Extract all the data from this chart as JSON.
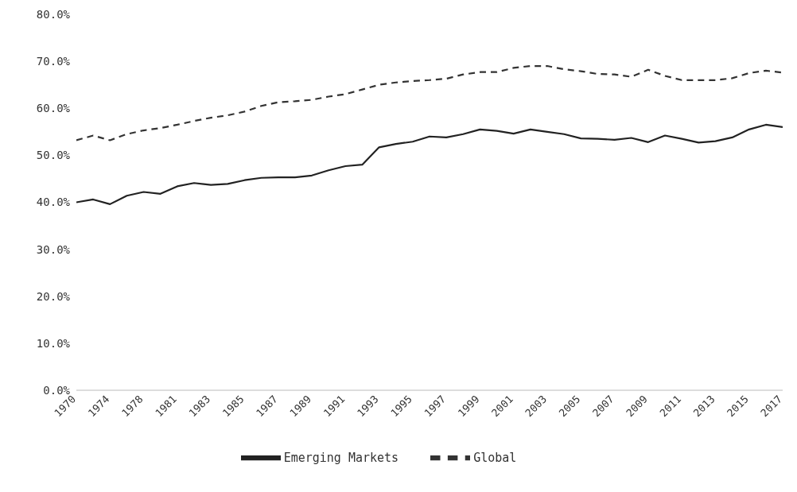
{
  "chart_data": {
    "type": "line",
    "categories": [
      "1970",
      null,
      "1974",
      null,
      "1978",
      null,
      "1981",
      null,
      "1983",
      null,
      "1985",
      null,
      "1987",
      null,
      "1989",
      null,
      "1991",
      null,
      "1993",
      null,
      "1995",
      null,
      "1997",
      null,
      "1999",
      null,
      "2001",
      null,
      "2003",
      null,
      "2005",
      null,
      "2007",
      null,
      "2009",
      null,
      "2011",
      null,
      "2013",
      null,
      "2015",
      null,
      "2017"
    ],
    "series": [
      {
        "name": "Global",
        "color": "#333333",
        "line_style": "dashed",
        "values": [
          53.2,
          54.2,
          53.2,
          54.5,
          55.3,
          55.8,
          56.5,
          57.3,
          58.0,
          58.5,
          59.3,
          60.5,
          61.3,
          61.5,
          61.8,
          62.5,
          63.0,
          64.0,
          65.0,
          65.5,
          65.8,
          66.0,
          66.3,
          67.2,
          67.7,
          67.7,
          68.6,
          69.0,
          69.0,
          68.3,
          67.9,
          67.3,
          67.2,
          66.7,
          68.2,
          66.9,
          66.0,
          66.0,
          66.0,
          66.4,
          67.5,
          68.0,
          67.6
        ]
      },
      {
        "name": "Emerging Markets",
        "color": "#222222",
        "line_style": "solid",
        "values": [
          40.0,
          40.6,
          39.6,
          41.4,
          42.2,
          41.8,
          43.4,
          44.1,
          43.7,
          43.9,
          44.7,
          45.2,
          45.3,
          45.3,
          45.7,
          46.8,
          47.7,
          48.0,
          51.7,
          52.4,
          52.9,
          54.0,
          53.8,
          54.5,
          55.5,
          55.2,
          54.6,
          55.5,
          55.0,
          54.5,
          53.6,
          53.5,
          53.3,
          53.7,
          52.8,
          54.2,
          53.5,
          52.7,
          53.0,
          53.8,
          55.5,
          56.5,
          56.0
        ]
      }
    ],
    "ylim": [
      0,
      80
    ],
    "yticks": [
      {
        "value": 0,
        "label": "0.0%"
      },
      {
        "value": 10,
        "label": "10.0%"
      },
      {
        "value": 20,
        "label": "20.0%"
      },
      {
        "value": 30,
        "label": "30.0%"
      },
      {
        "value": 40,
        "label": "40.0%"
      },
      {
        "value": 50,
        "label": "50.0%"
      },
      {
        "value": 60,
        "label": "60.0%"
      },
      {
        "value": 70,
        "label": "70.0%"
      },
      {
        "value": 80,
        "label": "80.0%"
      }
    ],
    "grid": false,
    "legend": "bottom",
    "marker": "none"
  }
}
